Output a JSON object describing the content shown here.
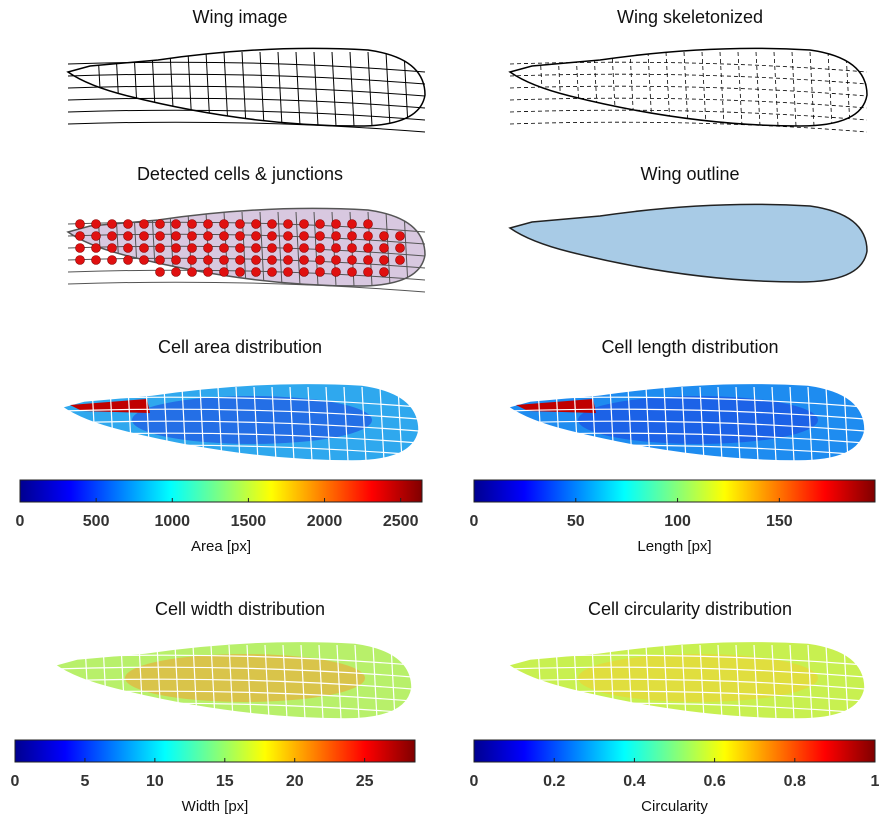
{
  "panels": [
    {
      "title": "Wing image"
    },
    {
      "title": "Wing skeletonized"
    },
    {
      "title": "Detected cells & junctions"
    },
    {
      "title": "Wing outline"
    },
    {
      "title": "Cell area distribution"
    },
    {
      "title": "Cell length distribution"
    },
    {
      "title": "Cell width distribution"
    },
    {
      "title": "Cell circularity distribution"
    }
  ],
  "colorbars": [
    {
      "label": "Area [px]",
      "lim": [
        0,
        2640
      ],
      "ticks": [
        0,
        500,
        1000,
        1500,
        2000,
        2500
      ]
    },
    {
      "label": "Length [px]",
      "lim": [
        0,
        197
      ],
      "ticks": [
        0,
        50,
        100,
        150
      ]
    },
    {
      "label": "Width [px]",
      "lim": [
        0,
        28.6
      ],
      "ticks": [
        0,
        5,
        10,
        15,
        20,
        25
      ]
    },
    {
      "label": "Circularity",
      "lim": [
        0,
        1
      ],
      "ticks": [
        0,
        0.2,
        0.4,
        0.6,
        0.8,
        1
      ]
    }
  ]
}
